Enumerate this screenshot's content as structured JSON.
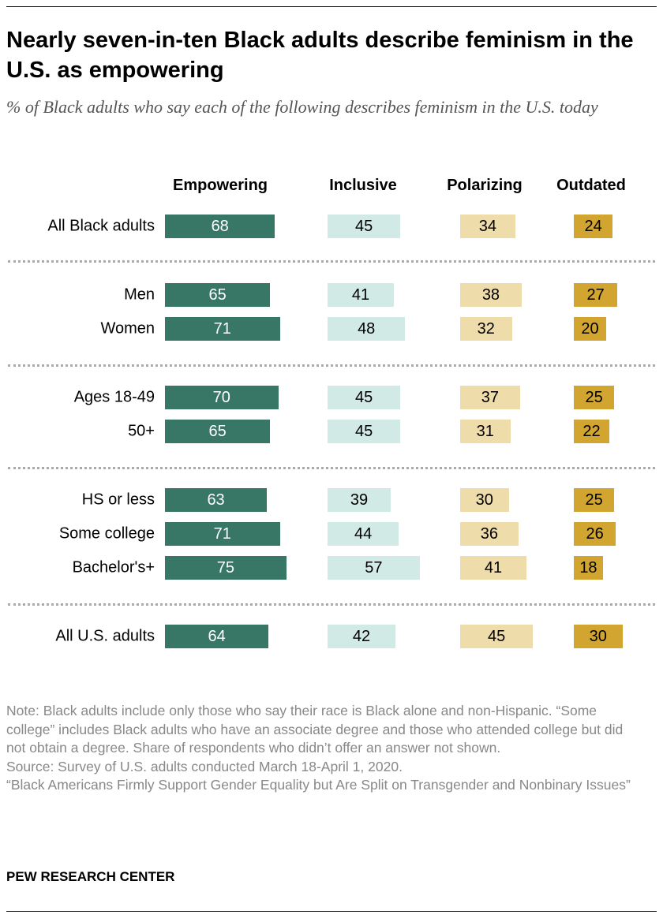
{
  "title": "Nearly seven-in-ten Black adults describe feminism in the U.S. as empowering",
  "subtitle": "% of Black adults who say each of the following describes feminism in the U.S. today",
  "chart_data": {
    "type": "bar",
    "orientation": "horizontal",
    "categories": [
      "All Black adults",
      "Men",
      "Women",
      "Ages 18-49",
      "50+",
      "HS or less",
      "Some college",
      "Bachelor's+",
      "All U.S. adults"
    ],
    "groups": [
      [
        0
      ],
      [
        1,
        2
      ],
      [
        3,
        4
      ],
      [
        5,
        6,
        7
      ],
      [
        8
      ]
    ],
    "series": [
      {
        "name": "Empowering",
        "color": "#387665",
        "text_color": "#ffffff",
        "values": [
          68,
          65,
          71,
          70,
          65,
          63,
          71,
          75,
          64
        ]
      },
      {
        "name": "Inclusive",
        "color": "#d2eae5",
        "text_color": "#000000",
        "values": [
          45,
          41,
          48,
          45,
          45,
          39,
          44,
          57,
          42
        ]
      },
      {
        "name": "Polarizing",
        "color": "#efdcab",
        "text_color": "#000000",
        "values": [
          34,
          38,
          32,
          37,
          31,
          30,
          36,
          41,
          45
        ]
      },
      {
        "name": "Outdated",
        "color": "#d1a530",
        "text_color": "#000000",
        "values": [
          24,
          27,
          20,
          25,
          22,
          25,
          26,
          18,
          30
        ]
      }
    ],
    "xlim": [
      0,
      100
    ],
    "grid": false,
    "data_labels": true
  },
  "notes": [
    "Note: Black adults include only those who say their race is Black alone and non-Hispanic. “Some college” includes Black adults who have an associate degree and those who attended college but did not obtain a degree. Share of respondents who didn’t offer an answer not shown.",
    "Source: Survey of U.S. adults conducted March 18-April 1, 2020.",
    "“Black Americans Firmly Support Gender Equality but Are Split on Transgender and Nonbinary Issues”"
  ],
  "brand": "PEW RESEARCH CENTER"
}
